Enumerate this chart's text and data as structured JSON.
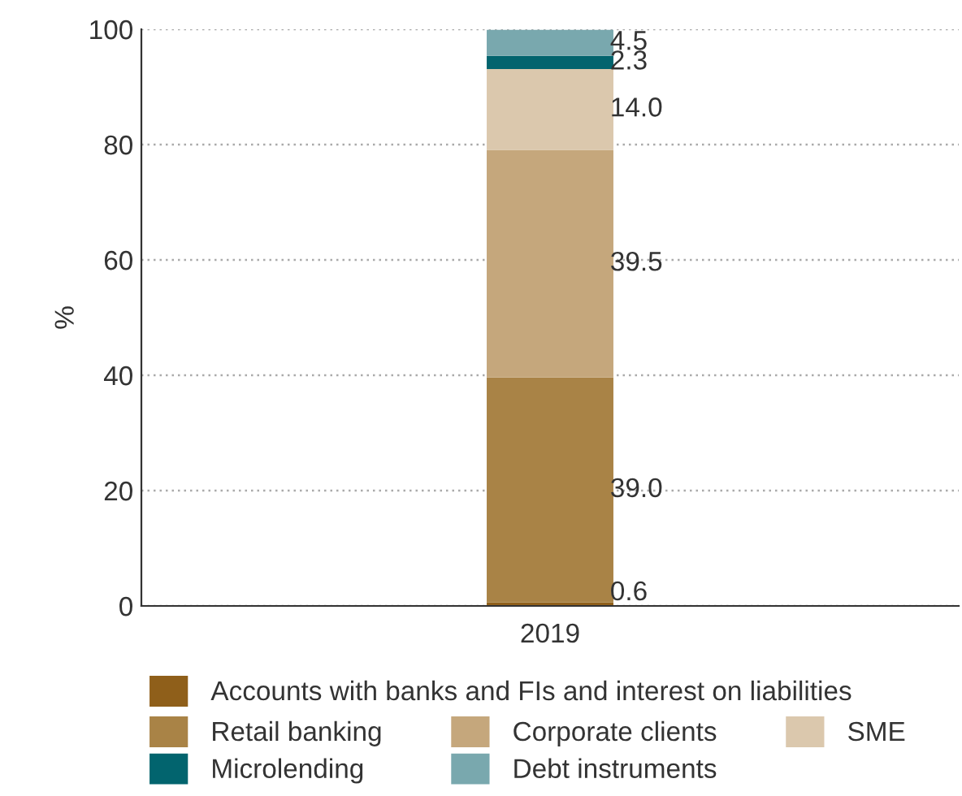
{
  "chart_data": {
    "type": "bar",
    "stacked": true,
    "categories": [
      "2019"
    ],
    "ylabel": "%",
    "ylim": [
      0,
      100
    ],
    "yticks": [
      0,
      20,
      40,
      60,
      80,
      100
    ],
    "grid": "y",
    "legend": "bottom",
    "series": [
      {
        "name": "Accounts with banks and FIs and interest on liabilities",
        "color": "#8f5f1a",
        "values": [
          0.6
        ],
        "value_labels": [
          "0.6"
        ]
      },
      {
        "name": "Retail banking",
        "color": "#a98346",
        "values": [
          39.0
        ],
        "value_labels": [
          "39.0"
        ]
      },
      {
        "name": "Corporate clients",
        "color": "#c5a77c",
        "values": [
          39.5
        ],
        "value_labels": [
          "39.5"
        ]
      },
      {
        "name": "SME",
        "color": "#dbc8ad",
        "values": [
          14.0
        ],
        "value_labels": [
          "14.0"
        ]
      },
      {
        "name": "Microlending",
        "color": "#02646e",
        "values": [
          2.3
        ],
        "value_labels": [
          "2.3"
        ]
      },
      {
        "name": "Debt instruments",
        "color": "#79a8ae",
        "values": [
          4.5
        ],
        "value_labels": [
          "4.5"
        ]
      }
    ]
  }
}
